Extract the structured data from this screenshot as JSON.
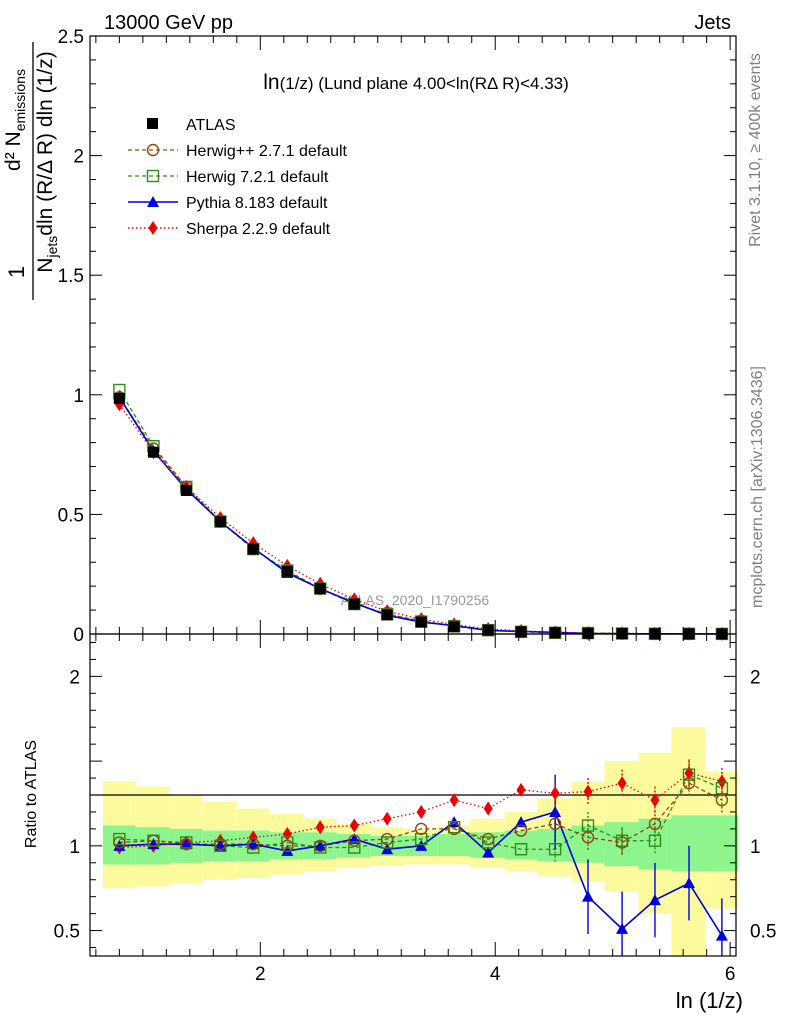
{
  "header": {
    "left": "13000 GeV pp",
    "right": "Jets"
  },
  "side_labels": {
    "rivet": "Rivet 3.1.10, ≥ 400k events",
    "mcplots": "mcplots.cern.ch [arXiv:1306.3436]"
  },
  "watermark": "ATLAS_2020_I1790256",
  "plot_title": "ln(1/z) (Lund plane 4.00<ln(RΔ R)<4.33)",
  "y_label_main": "1/N_jets dln (R/Δ R) dln (1/z) d² N_emissions",
  "y_label_ratio": "Ratio to ATLAS",
  "x_label": "ln (1/z)",
  "colors": {
    "atlas": "#000000",
    "herwigpp": "#8b4a0c",
    "herwig7": "#2e8b1a",
    "pythia": "#0000dd",
    "sherpa": "#ee0000",
    "band_inner": "#8ef58e",
    "band_outer": "#fbfb9e"
  },
  "chart_data": [
    {
      "type": "line",
      "panel": "main",
      "title": "ln(1/z) (Lund plane 4.00<ln(RΔ R)<4.33)",
      "xlabel": "ln (1/z)",
      "ylabel": "1/N_jets dln (R/Δ R) dln (1/z) d² N_emissions",
      "xlim": [
        0.55,
        6.05
      ],
      "ylim": [
        0,
        2.5
      ],
      "y_ticks": [
        "0",
        "0.5",
        "1",
        "1.5",
        "2",
        "2.5"
      ],
      "x": [
        0.8,
        1.09,
        1.37,
        1.66,
        1.94,
        2.23,
        2.51,
        2.8,
        3.08,
        3.37,
        3.65,
        3.94,
        4.22,
        4.51,
        4.79,
        5.08,
        5.36,
        5.65,
        5.93
      ],
      "series": [
        {
          "name": "ATLAS",
          "key": "atlas",
          "marker": "square",
          "values": [
            0.985,
            0.76,
            0.6,
            0.47,
            0.355,
            0.262,
            0.19,
            0.125,
            0.08,
            0.05,
            0.03,
            0.016,
            0.009,
            0.005,
            0.003,
            0.002,
            0.001,
            0.0006,
            0.0004
          ]
        },
        {
          "name": "Herwig++ 2.7.1 default",
          "key": "herwigpp",
          "marker": "circle",
          "values": [
            0.99,
            0.775,
            0.615,
            0.47,
            0.355,
            0.262,
            0.188,
            0.128,
            0.083,
            0.055,
            0.033,
            0.017,
            0.01,
            0.006,
            0.003,
            0.002,
            0.001,
            0.001,
            0.0005
          ]
        },
        {
          "name": "Herwig 7.2.1 default",
          "key": "herwig7",
          "marker": "open-square",
          "values": [
            1.02,
            0.785,
            0.615,
            0.47,
            0.355,
            0.265,
            0.19,
            0.125,
            0.083,
            0.052,
            0.033,
            0.016,
            0.009,
            0.005,
            0.004,
            0.002,
            0.001,
            0.001,
            0.0005
          ]
        },
        {
          "name": "Pythia 8.183 default",
          "key": "pythia",
          "marker": "triangle",
          "values": [
            0.99,
            0.765,
            0.605,
            0.47,
            0.36,
            0.255,
            0.19,
            0.13,
            0.078,
            0.05,
            0.035,
            0.015,
            0.011,
            0.007,
            0.002,
            0.001,
            0.0007,
            0.0005,
            0.0002
          ]
        },
        {
          "name": "Sherpa 2.2.9 default",
          "key": "sherpa",
          "marker": "diamond",
          "values": [
            0.96,
            0.76,
            0.615,
            0.485,
            0.38,
            0.285,
            0.21,
            0.145,
            0.095,
            0.062,
            0.04,
            0.021,
            0.013,
            0.007,
            0.004,
            0.003,
            0.0015,
            0.001,
            0.0006
          ]
        }
      ]
    },
    {
      "type": "line",
      "panel": "ratio",
      "ylabel": "Ratio to ATLAS",
      "xlabel": "ln (1/z)",
      "xlim": [
        0.55,
        6.05
      ],
      "ylim": [
        0.35,
        2.25
      ],
      "x_ticks": [
        "2",
        "4",
        "6"
      ],
      "y_ticks": [
        "0.5",
        "1",
        "2"
      ],
      "x_edges": [
        0.66,
        0.94,
        1.23,
        1.51,
        1.8,
        2.08,
        2.37,
        2.65,
        2.94,
        3.22,
        3.51,
        3.79,
        4.08,
        4.36,
        4.65,
        4.93,
        5.22,
        5.5,
        5.79,
        6.07
      ],
      "band_inner": {
        "low": [
          0.89,
          0.89,
          0.9,
          0.91,
          0.91,
          0.92,
          0.92,
          0.93,
          0.94,
          0.94,
          0.94,
          0.93,
          0.92,
          0.91,
          0.9,
          0.88,
          0.86,
          0.85,
          0.85
        ],
        "high": [
          1.12,
          1.11,
          1.1,
          1.09,
          1.09,
          1.08,
          1.08,
          1.07,
          1.06,
          1.06,
          1.07,
          1.08,
          1.09,
          1.1,
          1.12,
          1.14,
          1.16,
          1.18,
          1.18
        ]
      },
      "band_outer": {
        "low": [
          0.75,
          0.76,
          0.78,
          0.8,
          0.81,
          0.83,
          0.85,
          0.87,
          0.88,
          0.89,
          0.89,
          0.87,
          0.85,
          0.82,
          0.79,
          0.73,
          0.6,
          0.35,
          0.63
        ],
        "high": [
          1.38,
          1.35,
          1.3,
          1.26,
          1.22,
          1.19,
          1.16,
          1.13,
          1.11,
          1.1,
          1.12,
          1.16,
          1.2,
          1.28,
          1.38,
          1.5,
          1.55,
          1.7,
          1.44
        ]
      },
      "x": [
        0.8,
        1.09,
        1.37,
        1.66,
        1.94,
        2.23,
        2.51,
        2.8,
        3.08,
        3.37,
        3.65,
        3.94,
        4.22,
        4.51,
        4.79,
        5.08,
        5.36,
        5.65,
        5.93
      ],
      "series": [
        {
          "name": "Herwig++ 2.7.1 default",
          "key": "herwigpp",
          "marker": "circle",
          "values": [
            1.02,
            1.03,
            1.01,
            1.01,
            1.01,
            1.0,
            1.0,
            1.03,
            1.04,
            1.1,
            1.1,
            1.04,
            1.09,
            1.13,
            1.05,
            1.02,
            1.13,
            1.37,
            1.27
          ]
        },
        {
          "name": "Herwig 7.2.1 default",
          "key": "herwig7",
          "marker": "open-square",
          "values": [
            1.04,
            1.03,
            1.02,
            1.0,
            0.99,
            1.02,
            0.99,
            0.99,
            1.02,
            1.04,
            1.11,
            1.02,
            0.98,
            0.98,
            1.12,
            1.03,
            1.03,
            1.42,
            1.34
          ]
        },
        {
          "name": "Pythia 8.183 default",
          "key": "pythia",
          "marker": "triangle",
          "values": [
            1.0,
            1.01,
            1.01,
            1.0,
            1.01,
            0.97,
            1.0,
            1.04,
            0.98,
            1.0,
            1.14,
            0.96,
            1.14,
            1.2,
            0.7,
            0.51,
            0.68,
            0.78,
            0.47
          ]
        },
        {
          "name": "Sherpa 2.2.9 default",
          "key": "sherpa",
          "marker": "diamond",
          "values": [
            0.99,
            1.0,
            1.02,
            1.03,
            1.05,
            1.07,
            1.11,
            1.12,
            1.16,
            1.2,
            1.27,
            1.22,
            1.33,
            1.31,
            1.32,
            1.37,
            1.27,
            1.43,
            1.38
          ]
        }
      ]
    }
  ]
}
